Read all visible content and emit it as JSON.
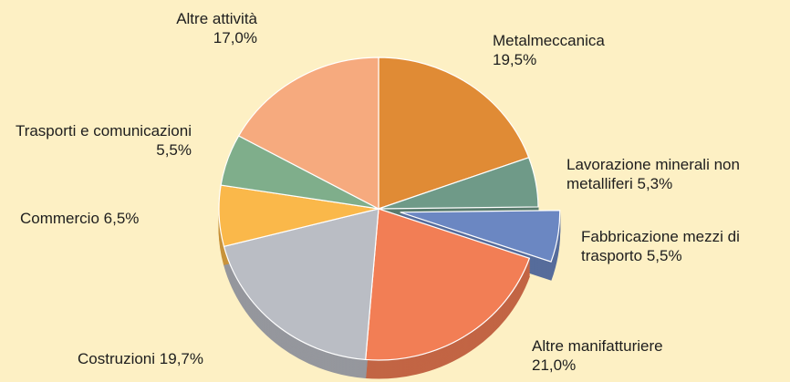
{
  "chart_data": {
    "type": "pie",
    "categories": [
      "Metalmeccanica",
      "Lavorazione minerali non metalliferi",
      "Fabbricazione mezzi di trasporto",
      "Altre manifatturiere",
      "Costruzioni",
      "Commercio",
      "Trasporti e comunicazioni",
      "Altre attività"
    ],
    "values": [
      19.5,
      5.3,
      5.5,
      21.0,
      19.7,
      6.5,
      5.5,
      17.0
    ],
    "value_labels": [
      "19,5%",
      "5,3%",
      "5,5%",
      "21,0%",
      "19,7%",
      "6,5%",
      "5,5%",
      "17,0%"
    ],
    "colors": [
      "#e08b35",
      "#6f9a88",
      "#6b87c2",
      "#f27e55",
      "#babdc4",
      "#fab84a",
      "#7fae8b",
      "#f6aa7e"
    ]
  }
}
